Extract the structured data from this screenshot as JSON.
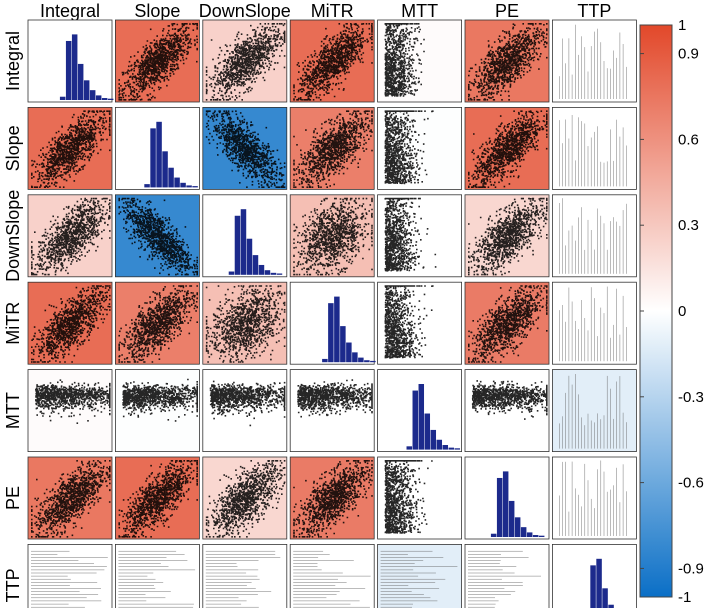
{
  "chart_data": {
    "type": "heatmap",
    "variables": [
      "Integral",
      "Slope",
      "DownSlope",
      "MiTR",
      "MTT",
      "PE",
      "TTP"
    ],
    "correlation": [
      [
        1.0,
        0.8,
        0.25,
        0.8,
        0.02,
        0.74,
        0.0
      ],
      [
        0.8,
        1.0,
        -0.82,
        0.7,
        -0.01,
        0.8,
        0.0
      ],
      [
        0.25,
        -0.82,
        1.0,
        0.35,
        0.0,
        0.22,
        0.0
      ],
      [
        0.8,
        0.7,
        0.35,
        1.0,
        0.0,
        0.72,
        0.0
      ],
      [
        0.02,
        -0.01,
        0.0,
        0.0,
        1.0,
        0.0,
        -0.12
      ],
      [
        0.74,
        0.8,
        0.22,
        0.72,
        0.0,
        1.0,
        0.0
      ],
      [
        0.0,
        0.0,
        0.0,
        0.0,
        -0.12,
        0.0,
        1.0
      ]
    ],
    "diagonal": "histogram",
    "colorbar": {
      "range": [
        -1,
        1
      ],
      "ticks": [
        1,
        0.9,
        0.6,
        0.3,
        0,
        -0.3,
        -0.6,
        -0.9,
        -1
      ],
      "tick_labels": [
        "1",
        "0.9",
        "0.6",
        "0.3",
        "0",
        "-0.3",
        "-0.6",
        "-0.9",
        "-1"
      ],
      "colors": {
        "neg": "#0a6fc6",
        "mid": "#ffffff",
        "pos": "#e2482a"
      }
    },
    "histogram_color": "#1c2a8c",
    "point_color": "#000000"
  }
}
